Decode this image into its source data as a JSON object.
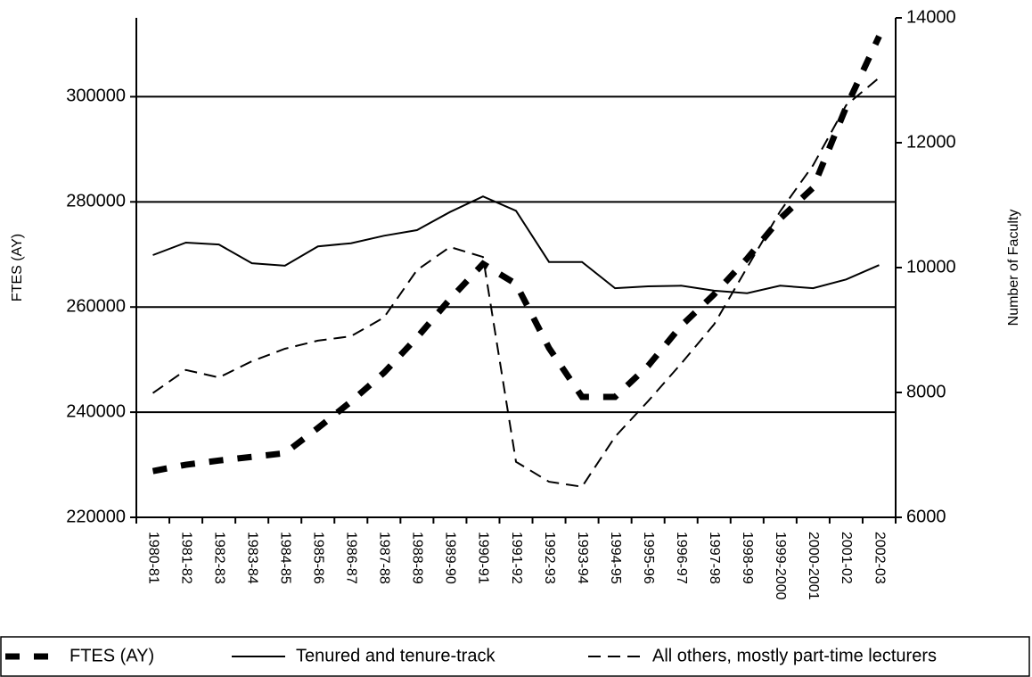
{
  "chart_data": {
    "type": "line",
    "y_label": "FTES (AY)",
    "y2_label": "Number of Faculty",
    "categories": [
      "1980-81",
      "1981-82",
      "1982-83",
      "1983-84",
      "1984-85",
      "1985-86",
      "1986-87",
      "1987-88",
      "1988-89",
      "1989-90",
      "1990-91",
      "1991-92",
      "1992-93",
      "1993-94",
      "1994-95",
      "1995-96",
      "1996-97",
      "1997-98",
      "1998-99",
      "1999-2000",
      "2000-2001",
      "2001-02",
      "2002-03"
    ],
    "series": [
      {
        "name": "FTES (AY)",
        "color": "#000000",
        "line_style": "bold-dashed",
        "values": [
          228800,
          230000,
          230800,
          231500,
          232200,
          237000,
          242000,
          247500,
          254200,
          261500,
          268200,
          264400,
          252200,
          242900,
          242900,
          248800,
          256400,
          262400,
          269200,
          276800,
          282700,
          298000,
          311500
        ]
      },
      {
        "name": "Tenured and tenure-track",
        "color": "#000000",
        "line_style": "solid",
        "axis": "y2",
        "values": [
          10200,
          10400,
          10370,
          10070,
          10030,
          10340,
          10390,
          10510,
          10600,
          10890,
          11140,
          10910,
          10090,
          10090,
          9670,
          9700,
          9710,
          9630,
          9590,
          9710,
          9670,
          9810,
          10040
        ]
      },
      {
        "name": "All others, mostly part-time lecturers",
        "color": "#000000",
        "line_style": "dashed",
        "axis": "y2",
        "values": [
          7990,
          8360,
          8240,
          8500,
          8700,
          8830,
          8900,
          9200,
          9960,
          10330,
          10170,
          6890,
          6570,
          6490,
          7290,
          7860,
          8460,
          9090,
          10000,
          10900,
          11640,
          12600,
          13040
        ]
      }
    ],
    "ylim": [
      220000,
      315000
    ],
    "yticks": [
      220000,
      240000,
      260000,
      280000,
      300000
    ],
    "y2lim": [
      6000,
      14000
    ],
    "y2ticks": [
      6000,
      8000,
      10000,
      12000,
      14000
    ],
    "grid": true,
    "legend": "bottom"
  }
}
